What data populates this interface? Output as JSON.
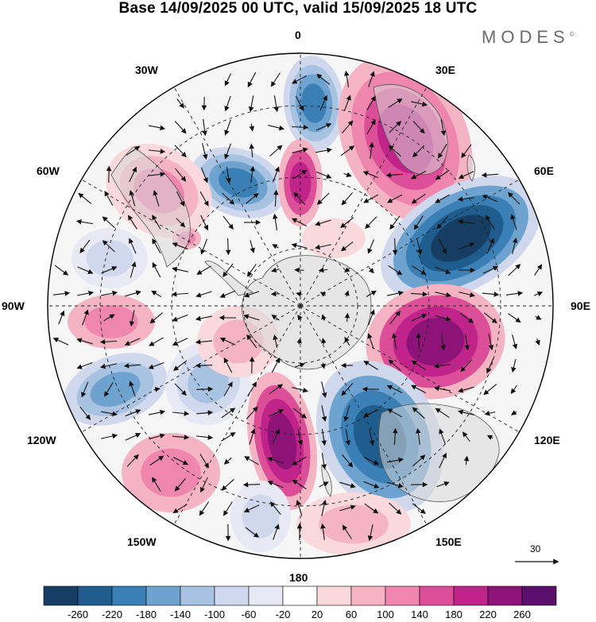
{
  "title": "Base 14/09/2025 00 UTC, valid 15/09/2025 18 UTC",
  "brand": "MODES",
  "brand_mark": "©",
  "longitude_labels": {
    "lon_0": "0",
    "lon_30e": "30E",
    "lon_60e": "60E",
    "lon_90e": "90E",
    "lon_120e": "120E",
    "lon_150e": "150E",
    "lon_180": "180",
    "lon_150w": "150W",
    "lon_120w": "120W",
    "lon_90w": "90W",
    "lon_60w": "60W",
    "lon_30w": "30W"
  },
  "vector_reference": "30",
  "colorbar": {
    "colors": [
      "#163e63",
      "#1f5d8e",
      "#3a7fb5",
      "#6fa3cf",
      "#a8c3e1",
      "#cfd8ec",
      "#e7e9f5",
      "#ffffff",
      "#f9d9dc",
      "#f5b4c3",
      "#ee86ae",
      "#dc4f98",
      "#c0248a",
      "#8e1378",
      "#5a0f6c"
    ],
    "ticks": [
      "-260",
      "-220",
      "-180",
      "-140",
      "-100",
      "-60",
      "-20",
      "20",
      "60",
      "100",
      "140",
      "180",
      "220",
      "260"
    ]
  },
  "colors": {
    "land": "#e4e4e4",
    "coast": "#555555",
    "grid": "#222222",
    "arrow": "#111111"
  }
}
